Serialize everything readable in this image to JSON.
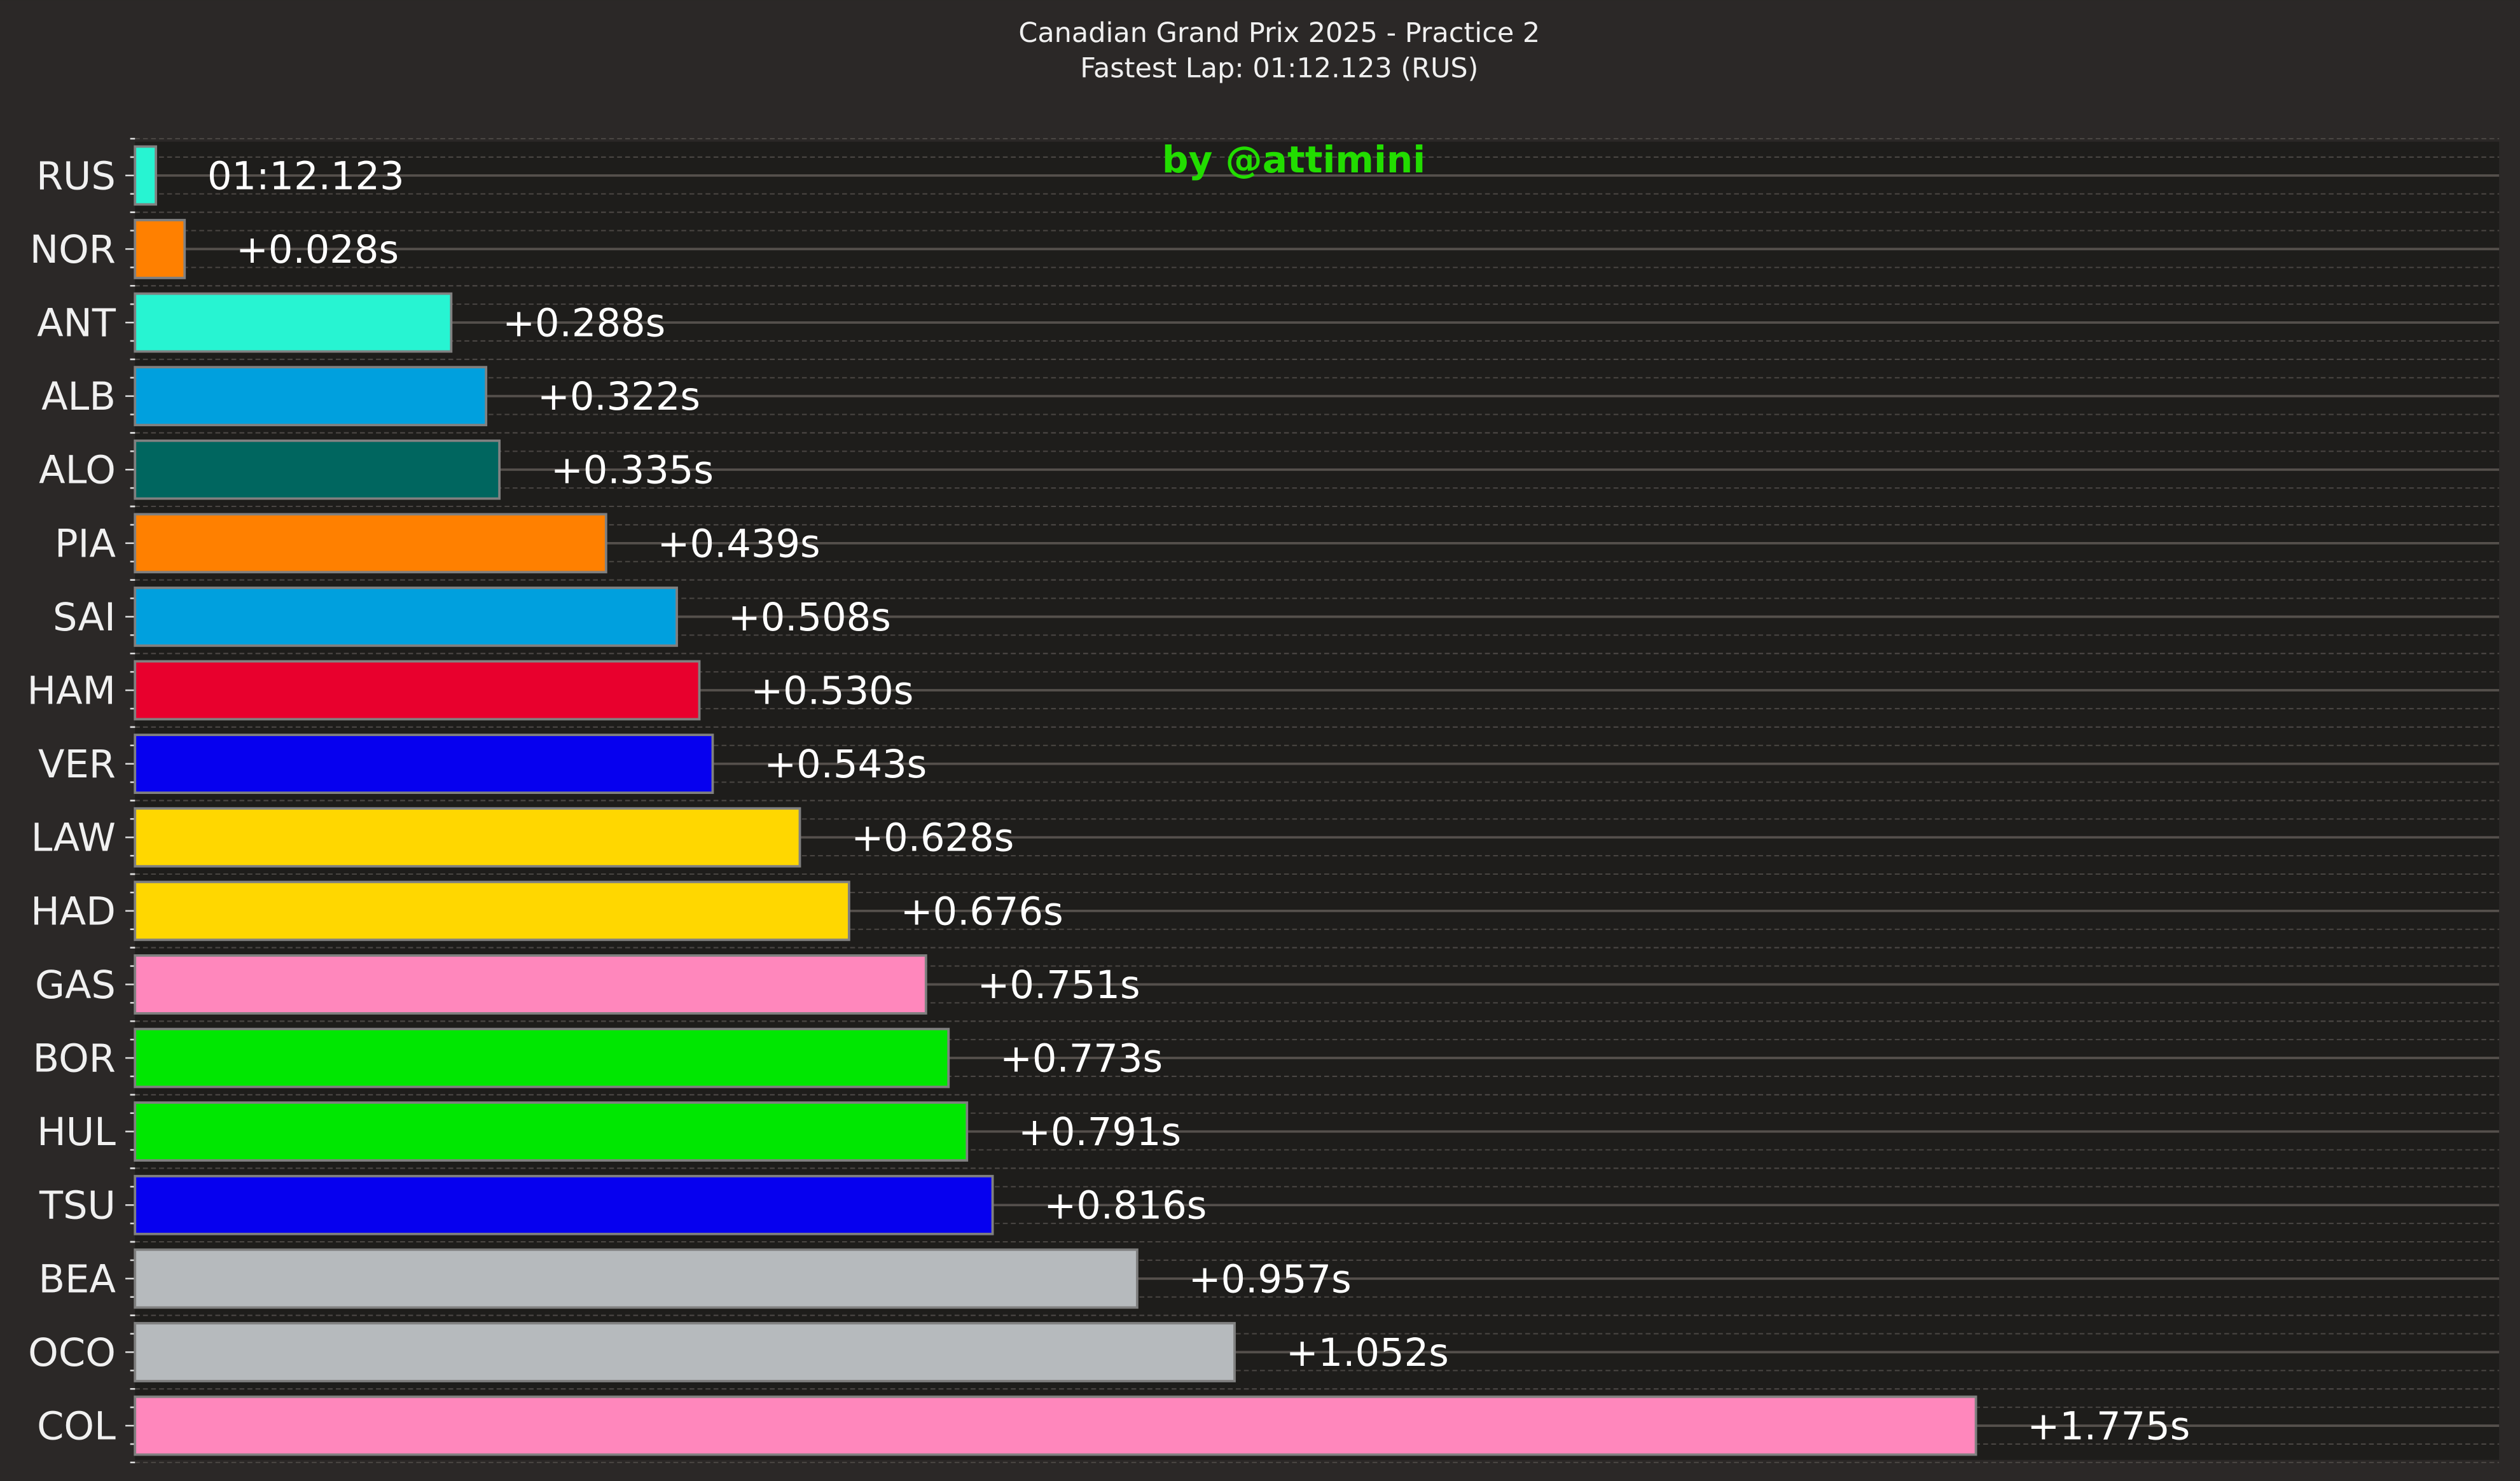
{
  "chart_data": {
    "type": "bar",
    "orientation": "horizontal",
    "title": "Canadian Grand Prix 2025 - Practice 2",
    "subtitle": "Fastest Lap: 01:12.123 (RUS)",
    "watermark": "by @attimini",
    "xlabel": "",
    "ylabel": "",
    "unit": "s gap to fastest",
    "grid": true,
    "categories": [
      "RUS",
      "NOR",
      "ANT",
      "ALB",
      "ALO",
      "PIA",
      "SAI",
      "HAM",
      "VER",
      "LAW",
      "HAD",
      "GAS",
      "BOR",
      "HUL",
      "TSU",
      "BEA",
      "OCO",
      "COL"
    ],
    "values": [
      0.0,
      0.028,
      0.288,
      0.322,
      0.335,
      0.439,
      0.508,
      0.53,
      0.543,
      0.628,
      0.676,
      0.751,
      0.773,
      0.791,
      0.816,
      0.957,
      1.052,
      1.775
    ],
    "labels": [
      "01:12.123",
      "+0.028s",
      "+0.288s",
      "+0.322s",
      "+0.335s",
      "+0.439s",
      "+0.508s",
      "+0.530s",
      "+0.543s",
      "+0.628s",
      "+0.676s",
      "+0.751s",
      "+0.773s",
      "+0.791s",
      "+0.816s",
      "+0.957s",
      "+1.052s",
      "+1.775s"
    ],
    "colors": [
      "#27f4d2",
      "#ff8000",
      "#27f4d2",
      "#00a0de",
      "#00665f",
      "#ff8000",
      "#00a0de",
      "#e8002d",
      "#0600ef",
      "#ffd700",
      "#ffd700",
      "#ff87bc",
      "#00e701",
      "#00e701",
      "#0600ef",
      "#b6babd",
      "#b6babd",
      "#ff87bc"
    ]
  }
}
